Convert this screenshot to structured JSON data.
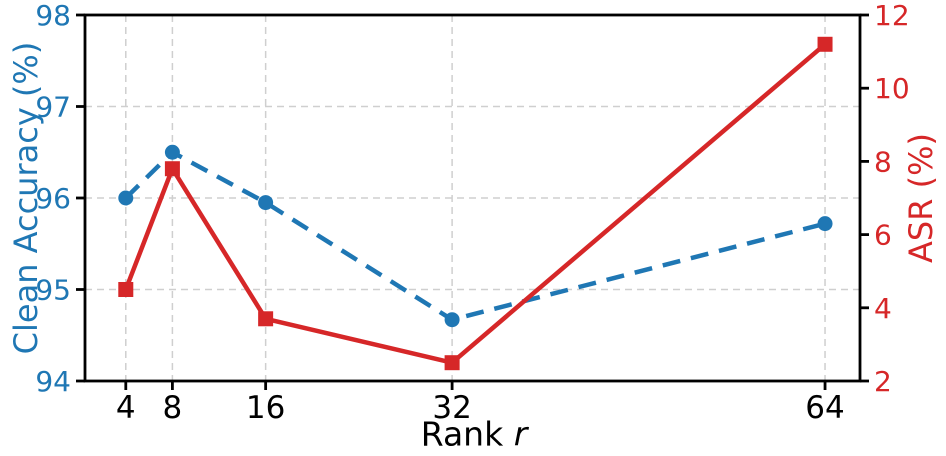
{
  "chart_data": {
    "type": "line",
    "x": [
      4,
      8,
      16,
      32,
      64
    ],
    "x_tick_labels": [
      "4",
      "8",
      "16",
      "32",
      "64"
    ],
    "xlabel": {
      "text": "Rank",
      "var": "r"
    },
    "xlim": [
      0.5,
      67
    ],
    "grid": true,
    "legend": "none",
    "grid_color": "#cfcfcf",
    "spine_color": "#000000",
    "x_tick_color": "#000000",
    "left_axis": {
      "label": "Clean Accuracy (%)",
      "color": "#1f77b4",
      "lim": [
        94,
        98
      ],
      "ticks": [
        94,
        95,
        96,
        97,
        98
      ]
    },
    "right_axis": {
      "label": "ASR (%)",
      "color": "#d62728",
      "lim": [
        2,
        12
      ],
      "ticks": [
        2,
        4,
        6,
        8,
        10,
        12
      ]
    },
    "series": [
      {
        "name": "Clean Accuracy (%)",
        "slug": "clean-accuracy",
        "axis": "left",
        "color": "#1f77b4",
        "line_style": "dashed",
        "marker": "circle",
        "values": [
          96.0,
          96.5,
          95.95,
          94.67,
          95.72
        ]
      },
      {
        "name": "ASR (%)",
        "slug": "asr",
        "axis": "right",
        "color": "#d62728",
        "line_style": "solid",
        "marker": "square",
        "values": [
          4.5,
          7.8,
          3.7,
          2.5,
          11.2
        ]
      }
    ]
  }
}
